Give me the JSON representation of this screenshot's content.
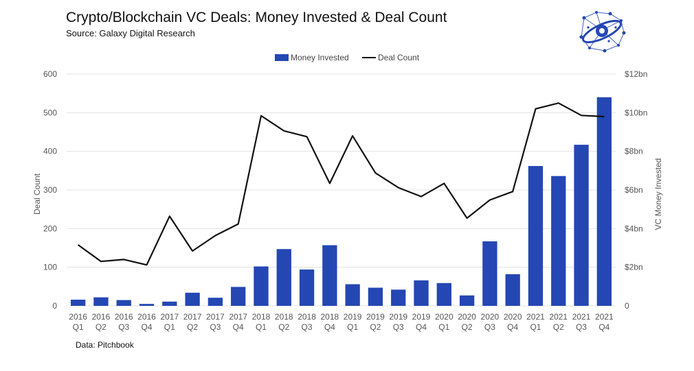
{
  "title": "Crypto/Blockchain VC Deals: Money Invested & Deal Count",
  "subtitle": "Source: Galaxy Digital Research",
  "footnote": "Data: Pitchbook",
  "logo_icon": "galaxy-network-logo-icon",
  "chart_data": {
    "type": "bar",
    "categories": [
      "2016 Q1",
      "2016 Q2",
      "2016 Q3",
      "2016 Q4",
      "2017 Q1",
      "2017 Q2",
      "2017 Q3",
      "2017 Q4",
      "2018 Q1",
      "2018 Q2",
      "2018 Q3",
      "2018 Q4",
      "2019 Q1",
      "2019 Q2",
      "2019 Q3",
      "2019 Q4",
      "2020 Q1",
      "2020 Q2",
      "2020 Q3",
      "2020 Q4",
      "2021 Q1",
      "2021 Q2",
      "2021 Q3",
      "2021 Q4"
    ],
    "category_lines": [
      [
        "2016",
        "Q1"
      ],
      [
        "2016",
        "Q2"
      ],
      [
        "2016",
        "Q3"
      ],
      [
        "2016",
        "Q4"
      ],
      [
        "2017",
        "Q1"
      ],
      [
        "2017",
        "Q2"
      ],
      [
        "2017",
        "Q3"
      ],
      [
        "2017",
        "Q4"
      ],
      [
        "2018",
        "Q1"
      ],
      [
        "2018",
        "Q2"
      ],
      [
        "2018",
        "Q3"
      ],
      [
        "2018",
        "Q4"
      ],
      [
        "2019",
        "Q1"
      ],
      [
        "2019",
        "Q2"
      ],
      [
        "2019",
        "Q3"
      ],
      [
        "2019",
        "Q4"
      ],
      [
        "2020",
        "Q1"
      ],
      [
        "2020",
        "Q2"
      ],
      [
        "2020",
        "Q3"
      ],
      [
        "2020",
        "Q4"
      ],
      [
        "2021",
        "Q1"
      ],
      [
        "2021",
        "Q2"
      ],
      [
        "2021",
        "Q3"
      ],
      [
        "2021",
        "Q4"
      ]
    ],
    "series": [
      {
        "name": "Money Invested",
        "type": "bar",
        "axis": "right",
        "color": "#2447b3",
        "values": [
          0.32,
          0.44,
          0.3,
          0.1,
          0.22,
          0.68,
          0.42,
          0.98,
          2.04,
          2.94,
          1.88,
          3.14,
          1.12,
          0.94,
          0.84,
          1.32,
          1.18,
          0.54,
          3.34,
          1.64,
          7.24,
          6.72,
          8.34,
          10.8
        ]
      },
      {
        "name": "Deal Count",
        "type": "line",
        "axis": "left",
        "color": "#111111",
        "values": [
          158,
          115,
          120,
          106,
          232,
          142,
          182,
          212,
          492,
          453,
          438,
          317,
          440,
          344,
          306,
          283,
          317,
          227,
          274,
          296,
          510,
          525,
          493,
          490
        ]
      }
    ],
    "y_left": {
      "label": "Deal Count",
      "min": 0,
      "max": 600,
      "ticks": [
        "0",
        "100",
        "200",
        "300",
        "400",
        "500",
        "600"
      ]
    },
    "y_right": {
      "label": "VC Money Invested",
      "min": 0,
      "max": 12,
      "ticks": [
        "0",
        "$2bn",
        "$4bn",
        "$6bn",
        "$8bn",
        "$10bn",
        "$12bn"
      ]
    },
    "grid": true,
    "legend_position": "top-center"
  }
}
